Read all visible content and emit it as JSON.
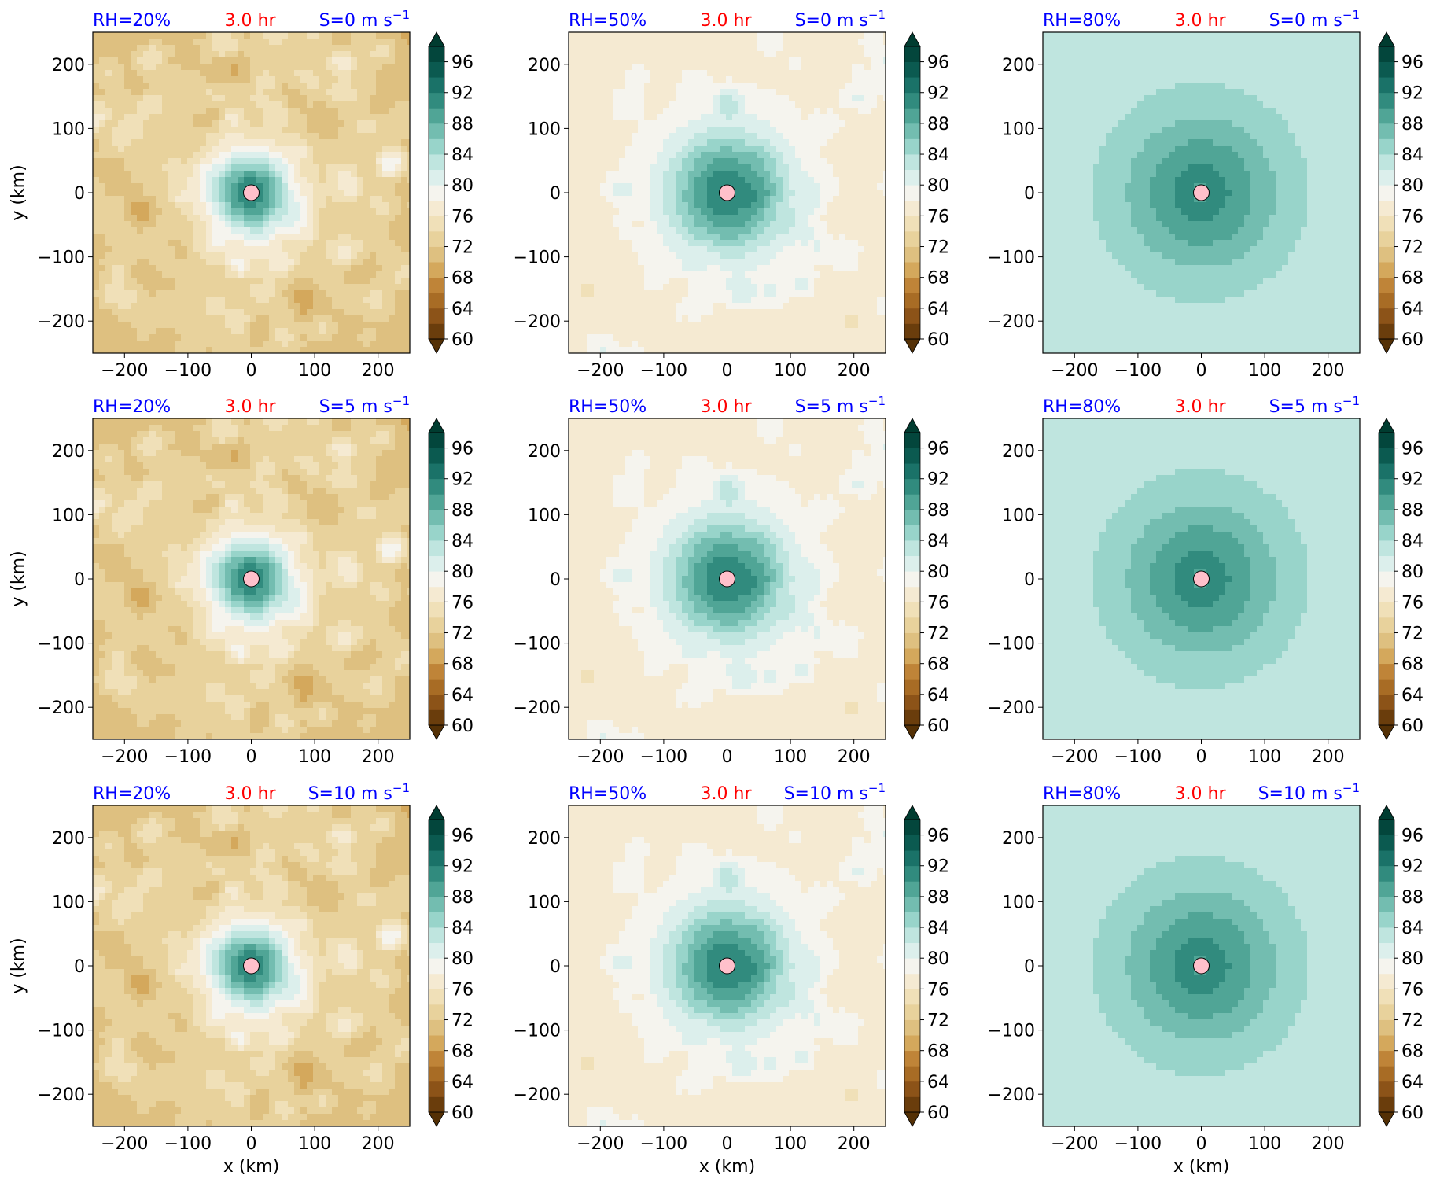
{
  "chart_data": {
    "type": "heatmap",
    "description_time": "3.0 hr",
    "x_ticks": [
      "−200",
      "−100",
      "0",
      "100",
      "200"
    ],
    "y_ticks": [
      "200",
      "100",
      "0",
      "−100",
      "−200"
    ],
    "xlim": [
      -250,
      250
    ],
    "ylim": [
      -250,
      250
    ],
    "xlabel": "x (km)",
    "ylabel": "y (km)",
    "colorbar": {
      "ticks": [
        "96",
        "92",
        "88",
        "84",
        "80",
        "76",
        "72",
        "68",
        "64",
        "60"
      ],
      "range": [
        60,
        98
      ],
      "extend": "both",
      "colormap": "BrBG"
    },
    "colors": {
      "rh_label": "#0000ff",
      "time_label": "#ff0000",
      "shear_label": "#0000ff",
      "center_marker": "#ffc0cb"
    },
    "panels": [
      {
        "rh": "RH=20%",
        "time": "3.0 hr",
        "shear": "S=0 m s",
        "bg_value": 72.5,
        "core_peak": 92,
        "moist_radius_km": 85
      },
      {
        "rh": "RH=50%",
        "time": "3.0 hr",
        "shear": "S=0 m s",
        "bg_value": 77.5,
        "core_peak": 92,
        "moist_radius_km": 120
      },
      {
        "rh": "RH=80%",
        "time": "3.0 hr",
        "shear": "S=0 m s",
        "bg_value": 83,
        "core_peak": 91,
        "moist_radius_km": 150
      },
      {
        "rh": "RH=20%",
        "time": "3.0 hr",
        "shear": "S=5 m s",
        "bg_value": 72.5,
        "core_peak": 92,
        "moist_radius_km": 85
      },
      {
        "rh": "RH=50%",
        "time": "3.0 hr",
        "shear": "S=5 m s",
        "bg_value": 77.5,
        "core_peak": 92,
        "moist_radius_km": 120
      },
      {
        "rh": "RH=80%",
        "time": "3.0 hr",
        "shear": "S=5 m s",
        "bg_value": 83,
        "core_peak": 91,
        "moist_radius_km": 150
      },
      {
        "rh": "RH=20%",
        "time": "3.0 hr",
        "shear": "S=10 m s",
        "bg_value": 72.5,
        "core_peak": 92,
        "moist_radius_km": 85
      },
      {
        "rh": "RH=50%",
        "time": "3.0 hr",
        "shear": "S=10 m s",
        "bg_value": 77.5,
        "core_peak": 92,
        "moist_radius_km": 120
      },
      {
        "rh": "RH=80%",
        "time": "3.0 hr",
        "shear": "S=10 m s",
        "bg_value": 83,
        "core_peak": 91,
        "moist_radius_km": 150
      }
    ],
    "shear_unit_exponent": "−1"
  }
}
